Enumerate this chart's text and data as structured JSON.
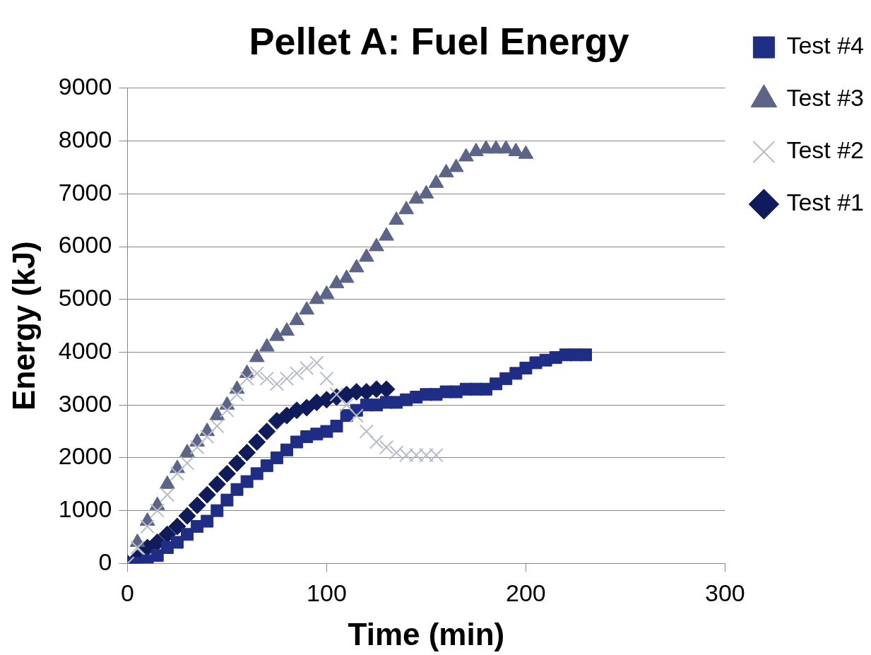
{
  "chart_data": {
    "type": "scatter",
    "title": "Pellet A: Fuel Energy",
    "xlabel": "Time (min)",
    "ylabel": "Energy (kJ)",
    "xlim": [
      0,
      300
    ],
    "xticks": [
      0,
      100,
      200,
      300
    ],
    "ylim": [
      0,
      9000
    ],
    "yticks": [
      0,
      1000,
      2000,
      3000,
      4000,
      5000,
      6000,
      7000,
      8000,
      9000
    ],
    "grid": "y",
    "legend": "top right",
    "series": [
      {
        "name": "Test #4",
        "color": "#1f2d84",
        "marker": "square",
        "x": [
          0,
          5,
          10,
          15,
          20,
          25,
          30,
          35,
          40,
          45,
          50,
          55,
          60,
          65,
          70,
          75,
          80,
          85,
          90,
          95,
          100,
          105,
          110,
          115,
          120,
          125,
          130,
          135,
          140,
          145,
          150,
          155,
          160,
          165,
          170,
          175,
          180,
          185,
          190,
          195,
          200,
          205,
          210,
          215,
          220,
          225,
          230
        ],
        "values": [
          0,
          0,
          50,
          150,
          300,
          400,
          550,
          700,
          800,
          1000,
          1200,
          1400,
          1550,
          1700,
          1850,
          2000,
          2150,
          2300,
          2400,
          2450,
          2500,
          2600,
          2800,
          2900,
          3000,
          3000,
          3050,
          3050,
          3100,
          3150,
          3200,
          3200,
          3250,
          3250,
          3300,
          3300,
          3300,
          3400,
          3500,
          3600,
          3700,
          3800,
          3850,
          3900,
          3950,
          3950,
          3950
        ]
      },
      {
        "name": "Test #3",
        "color": "#5c6488",
        "marker": "triangle",
        "x": [
          5,
          10,
          15,
          20,
          25,
          30,
          35,
          40,
          45,
          50,
          55,
          60,
          65,
          70,
          75,
          80,
          85,
          90,
          95,
          100,
          105,
          110,
          115,
          120,
          125,
          130,
          135,
          140,
          145,
          150,
          155,
          160,
          165,
          170,
          175,
          180,
          185,
          190,
          195,
          200
        ],
        "values": [
          400,
          800,
          1100,
          1500,
          1800,
          2100,
          2300,
          2500,
          2800,
          3000,
          3300,
          3600,
          3900,
          4100,
          4300,
          4400,
          4600,
          4800,
          5000,
          5100,
          5300,
          5400,
          5600,
          5800,
          6000,
          6200,
          6500,
          6700,
          6900,
          7000,
          7200,
          7400,
          7500,
          7700,
          7800,
          7850,
          7850,
          7850,
          7800,
          7750
        ]
      },
      {
        "name": "Test #2",
        "color": "#b8bcc8",
        "marker": "cross",
        "x": [
          0,
          5,
          10,
          15,
          20,
          25,
          30,
          35,
          40,
          45,
          50,
          55,
          60,
          65,
          70,
          75,
          80,
          85,
          90,
          95,
          100,
          105,
          110,
          115,
          120,
          125,
          130,
          135,
          140,
          145,
          150,
          155
        ],
        "values": [
          0,
          300,
          700,
          1000,
          1300,
          1700,
          1900,
          2200,
          2400,
          2600,
          2900,
          3200,
          3500,
          3600,
          3500,
          3400,
          3500,
          3600,
          3700,
          3800,
          3500,
          3200,
          3000,
          2800,
          2500,
          2300,
          2200,
          2100,
          2050,
          2050,
          2050,
          2050
        ]
      },
      {
        "name": "Test #1",
        "color": "#101b5c",
        "marker": "diamond",
        "x": [
          0,
          5,
          10,
          15,
          20,
          25,
          30,
          35,
          40,
          45,
          50,
          55,
          60,
          65,
          70,
          75,
          80,
          85,
          90,
          95,
          100,
          105,
          110,
          115,
          120,
          125,
          130
        ],
        "values": [
          0,
          100,
          300,
          400,
          550,
          700,
          900,
          1100,
          1300,
          1500,
          1700,
          1900,
          2100,
          2300,
          2500,
          2700,
          2800,
          2900,
          2950,
          3050,
          3100,
          3150,
          3200,
          3250,
          3250,
          3300,
          3300
        ]
      }
    ]
  }
}
